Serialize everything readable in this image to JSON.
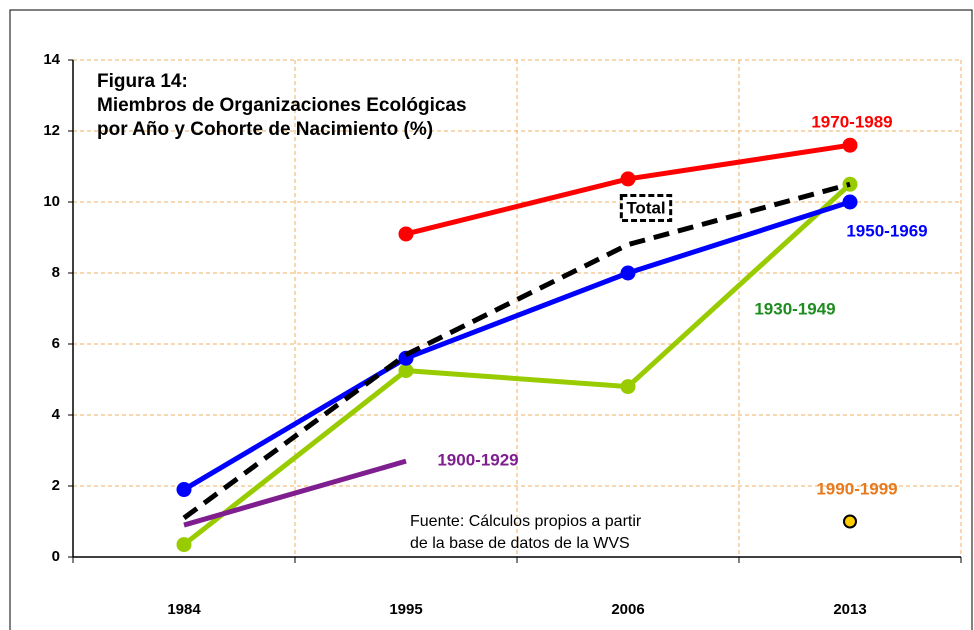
{
  "chart_data": {
    "type": "line",
    "title": [
      "Figura 14:",
      "Miembros de Organizaciones Ecológicas",
      "por Año y Cohorte de Nacimiento (%)"
    ],
    "annotation": [
      "Fuente: Cálculos propios a partir",
      "de la base de datos de la WVS"
    ],
    "categories": [
      "1984",
      "1995",
      "2006",
      "2013"
    ],
    "ylim": [
      0,
      14
    ],
    "yticks": [
      0,
      2,
      4,
      6,
      8,
      10,
      12,
      14
    ],
    "grid": true,
    "series": [
      {
        "name": "1930-1949",
        "color": "#99cc00",
        "label_color": "#1e8c1e",
        "marker": true,
        "dashed": false,
        "values": [
          0.35,
          5.25,
          4.8,
          10.5
        ]
      },
      {
        "name": "1950-1969",
        "color": "#0000ff",
        "label_color": "#0000ff",
        "marker": true,
        "dashed": false,
        "values": [
          1.9,
          5.6,
          8.0,
          10.0
        ]
      },
      {
        "name": "Total",
        "color": "#000000",
        "label_color": "#000000",
        "marker": false,
        "dashed": true,
        "values": [
          1.1,
          5.7,
          8.8,
          10.5
        ]
      },
      {
        "name": "1970-1989",
        "color": "#ff0000",
        "label_color": "#ff0000",
        "marker": true,
        "dashed": false,
        "values": [
          null,
          9.1,
          10.65,
          11.6
        ]
      },
      {
        "name": "1900-1929",
        "color": "#7f1f8f",
        "label_color": "#7f1f8f",
        "marker": false,
        "dashed": false,
        "values": [
          0.9,
          2.7,
          null,
          null
        ]
      },
      {
        "name": "1990-1999",
        "color": "#ffcc00",
        "label_color": "#e87a1e",
        "marker": true,
        "dashed": false,
        "values": [
          null,
          null,
          null,
          1.0
        ]
      }
    ]
  }
}
